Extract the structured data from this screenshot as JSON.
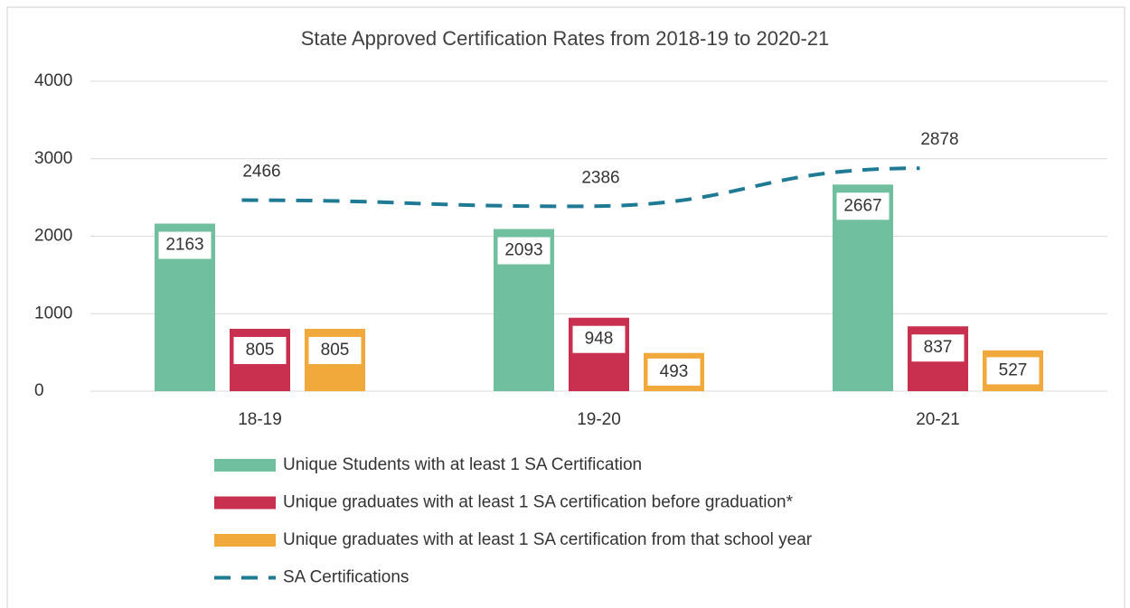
{
  "chart_data": {
    "type": "bar",
    "title": "State Approved Certification Rates from 2018-19 to 2020-21",
    "categories": [
      "18-19",
      "19-20",
      "20-21"
    ],
    "ylim": [
      0,
      4000
    ],
    "yticks": [
      0,
      1000,
      2000,
      3000,
      4000
    ],
    "grid": true,
    "legend": "bottom",
    "series": [
      {
        "name": "Unique Students with at least 1 SA Certification",
        "type": "bar",
        "color": "#70bf9e",
        "values": [
          2163,
          2093,
          2667
        ]
      },
      {
        "name": "Unique graduates with at least 1 SA certification before graduation*",
        "type": "bar",
        "color": "#c9304f",
        "values": [
          805,
          948,
          837
        ]
      },
      {
        "name": "Unique graduates with at least 1 SA certification from that school year",
        "type": "bar",
        "color": "#f2a93b",
        "values": [
          805,
          493,
          527
        ]
      },
      {
        "name": "SA Certifications",
        "type": "line",
        "color": "#1f7a94",
        "values": [
          2466,
          2386,
          2878
        ]
      }
    ]
  }
}
